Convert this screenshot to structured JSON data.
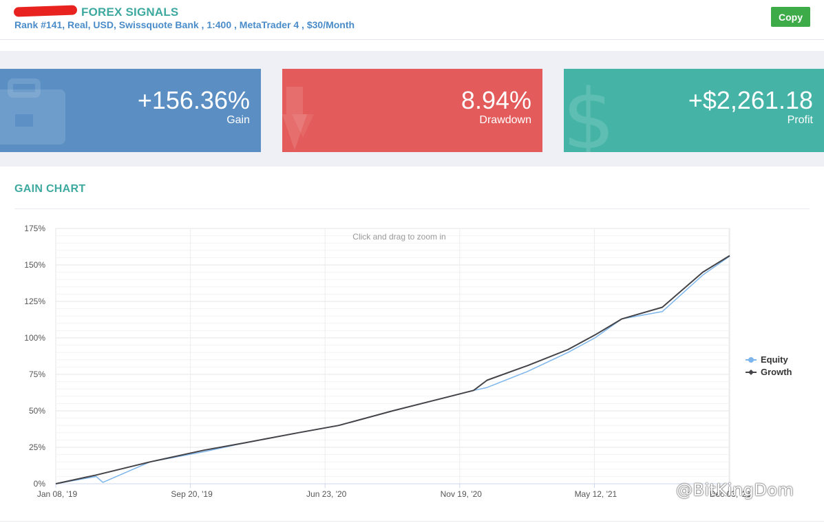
{
  "header": {
    "title": "FOREX SIGNALS",
    "subtitle": "Rank #141, Real, USD, Swissquote Bank , 1:400 , MetaTrader 4 , $30/Month",
    "copy_label": "Copy"
  },
  "stats": [
    {
      "value": "+156.36%",
      "label": "Gain",
      "color": "#5b8fc4",
      "icon": "briefcase-icon"
    },
    {
      "value": "8.94%",
      "label": "Drawdown",
      "color": "#e35c5b",
      "icon": "arrow-down-icon"
    },
    {
      "value": "+$2,261.18",
      "label": "Profit",
      "color": "#45b4a7",
      "icon": "dollar-icon"
    }
  ],
  "section": {
    "title": "GAIN CHART"
  },
  "chart_hint": "Click and drag to zoom in",
  "watermark": "@BitKingDom",
  "chart_data": {
    "type": "line",
    "y_ticks": [
      "0%",
      "25%",
      "50%",
      "75%",
      "100%",
      "125%",
      "150%",
      "175%"
    ],
    "x_ticks": [
      "Jan 08, '19",
      "Sep 20, '19",
      "Jun 23, '20",
      "Nov 19, '20",
      "May 12, '21",
      "Dec 03, '21"
    ],
    "ylim": [
      0,
      175
    ],
    "legend_position": "right",
    "series": [
      {
        "name": "Equity",
        "color": "#7cb5ec",
        "x": [
          0,
          0.06,
          0.07,
          0.14,
          0.22,
          0.28,
          0.36,
          0.42,
          0.5,
          0.56,
          0.62,
          0.64,
          0.7,
          0.76,
          0.8,
          0.84,
          0.9,
          0.96,
          1.0
        ],
        "y": [
          0,
          5,
          1,
          15,
          22,
          28,
          35,
          40,
          50,
          57,
          64,
          66,
          77,
          90,
          100,
          113,
          118,
          143,
          156
        ]
      },
      {
        "name": "Growth",
        "color": "#434348",
        "x": [
          0,
          0.06,
          0.14,
          0.22,
          0.28,
          0.36,
          0.42,
          0.5,
          0.56,
          0.62,
          0.64,
          0.7,
          0.76,
          0.8,
          0.84,
          0.9,
          0.96,
          1.0
        ],
        "y": [
          0,
          6,
          15,
          23,
          28,
          35,
          40,
          50,
          57,
          64,
          71,
          81,
          92,
          102,
          113,
          121,
          145,
          156.36
        ]
      }
    ],
    "title": "GAIN CHART"
  }
}
